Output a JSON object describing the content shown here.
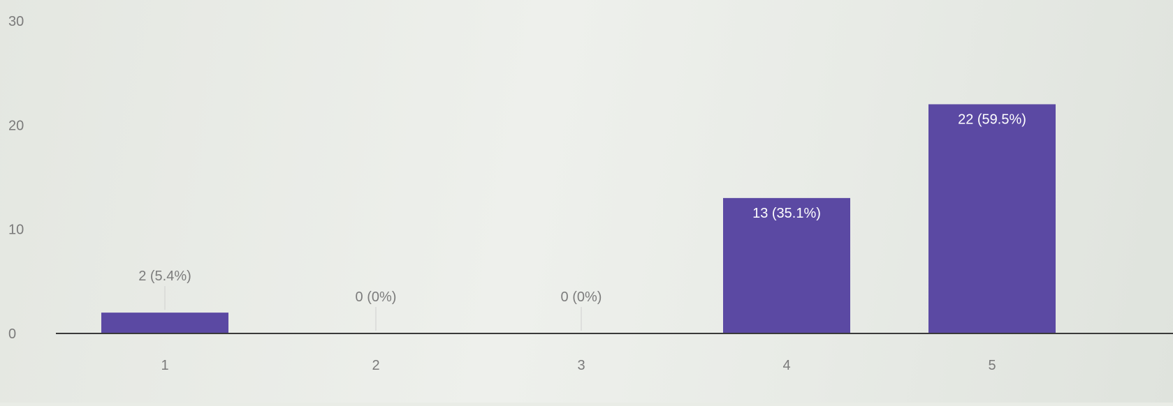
{
  "chart_data": {
    "type": "bar",
    "categories": [
      "1",
      "2",
      "3",
      "4",
      "5"
    ],
    "values": [
      2,
      0,
      0,
      13,
      22
    ],
    "data_labels": [
      "2 (5.4%)",
      "0 (0%)",
      "0 (0%)",
      "13 (35.1%)",
      "22 (59.5%)"
    ],
    "yticks": [
      "0",
      "10",
      "20",
      "30"
    ],
    "ylim": [
      0,
      30
    ],
    "title": "",
    "xlabel": "",
    "ylabel": "",
    "grid": false,
    "legend": "none",
    "bar_color": "#5b49a3",
    "label_color_inside": "#ffffff",
    "label_color_outside": "#7c7c7c"
  }
}
